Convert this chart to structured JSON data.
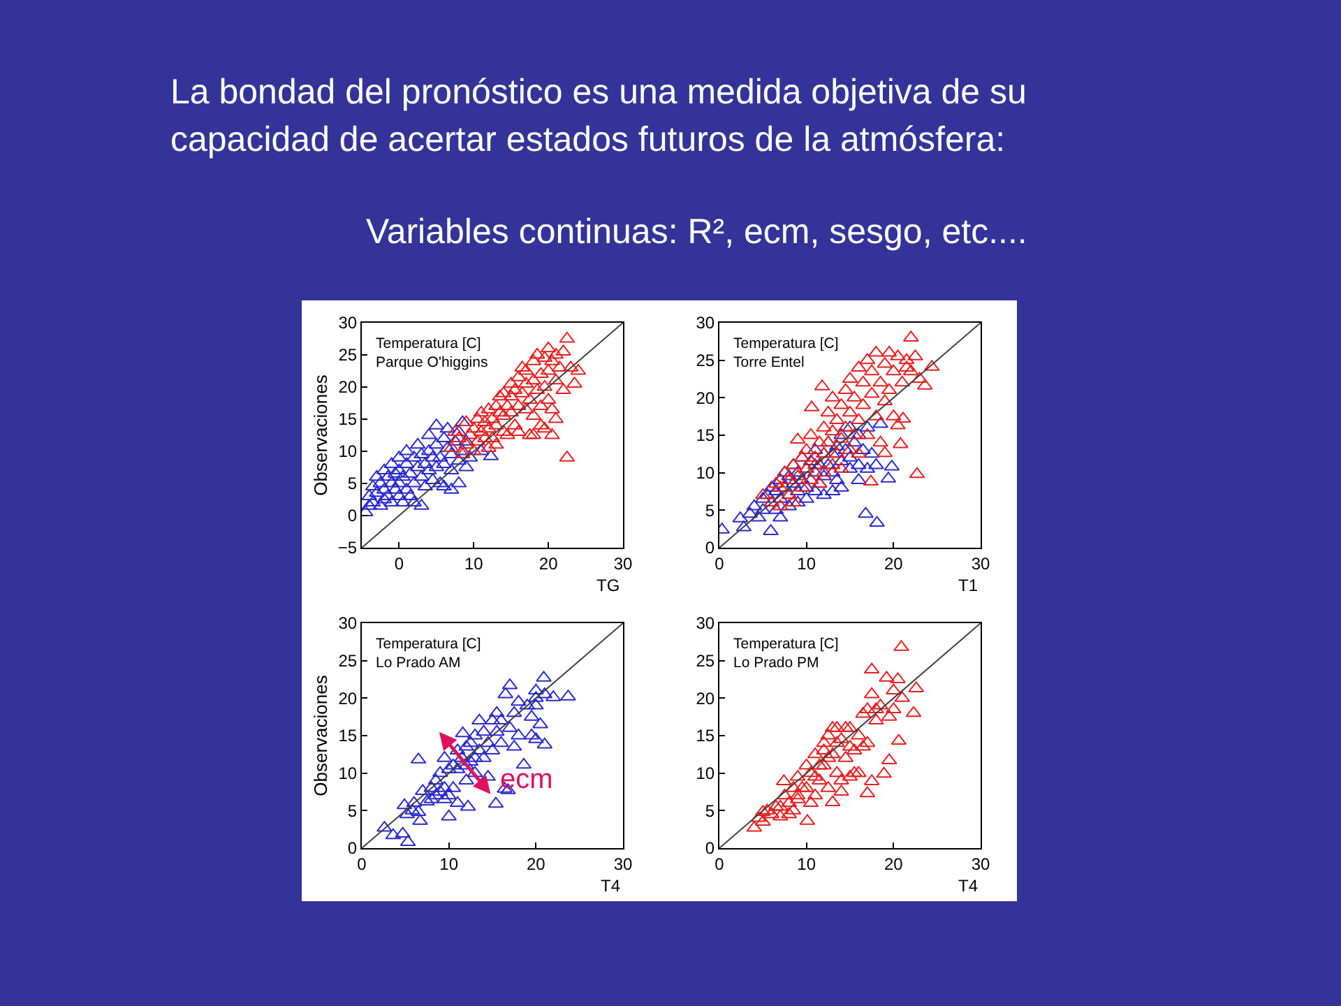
{
  "chart_data": [
    {
      "type": "other",
      "title": "La bondad del pronóstico es una medida objetiva de su capacidad de acertar estados futuros de la atmósfera:",
      "subtitle": "Variables continuas: R², ecm, sesgo, etc...."
    },
    {
      "type": "scatter",
      "marker": "triangle",
      "xlabel": "TG",
      "ylabel": "Observaciones",
      "annotations": [
        "Temperatura [C]\nParque O'higgins"
      ],
      "xlim": [
        -5,
        30
      ],
      "ylim": [
        -5,
        30
      ],
      "xticks": [
        0,
        10,
        20,
        30
      ],
      "yticks": [
        -5,
        0,
        5,
        10,
        15,
        20,
        25,
        30
      ],
      "series": [
        {
          "color": "#2b2bd0",
          "x": [
            -4.5,
            -4,
            -4,
            -3.5,
            -3.5,
            -3,
            -3,
            -2.5,
            -2.5,
            -2,
            -2,
            -2,
            -1.5,
            -1.5,
            -1,
            -1,
            -1,
            -0.5,
            -0.5,
            0,
            0,
            0,
            0,
            0.5,
            0.5,
            1,
            1,
            1,
            1.5,
            1.5,
            2,
            2,
            2,
            2.5,
            2.5,
            3,
            3,
            3,
            3.5,
            3.5,
            4,
            4,
            4,
            4.5,
            4.5,
            5,
            5,
            5,
            5.5,
            5.5,
            6,
            6,
            6,
            6.5,
            6.5,
            7,
            7,
            7,
            7.5,
            8,
            8,
            8,
            8.5,
            9,
            9,
            8.5,
            9.5,
            12.3,
            11
          ],
          "values": [
            0.5,
            1.5,
            3,
            4.5,
            2,
            6,
            3.5,
            5,
            1.5,
            7,
            4,
            2.5,
            6,
            3,
            8,
            5,
            2,
            6.5,
            4,
            9,
            7,
            3,
            5,
            6,
            2,
            8,
            4,
            10,
            6.5,
            3,
            9,
            5,
            2,
            7.5,
            11,
            6,
            9.5,
            1.5,
            8,
            4.5,
            10,
            7,
            12.5,
            5.5,
            9,
            11,
            7.5,
            14,
            9,
            5,
            12,
            8,
            4.5,
            10.5,
            13.5,
            7,
            9.5,
            4,
            11.5,
            8.5,
            5,
            13,
            10,
            7.5,
            11.5,
            14.5,
            9,
            9.2,
            10
          ]
        },
        {
          "color": "#e82020",
          "x": [
            7,
            7.5,
            8,
            8.5,
            9,
            9,
            9.5,
            10,
            10,
            10.5,
            10.5,
            11,
            11,
            11.5,
            11.5,
            12,
            12,
            12,
            12.5,
            12.5,
            13,
            13,
            13,
            13.5,
            13.5,
            14,
            14,
            14,
            14.5,
            14.5,
            15,
            15,
            15,
            15.5,
            15.5,
            16,
            16,
            16,
            16.5,
            16.5,
            17,
            17,
            17,
            17.5,
            17.5,
            18,
            18,
            18,
            18.5,
            18.5,
            19,
            19,
            19,
            19.5,
            19.5,
            20,
            20,
            20,
            20.5,
            20.5,
            20.5,
            21,
            21,
            21,
            21.5,
            22,
            22,
            22.5,
            22.5,
            23,
            23.5,
            24,
            19.5,
            18
          ],
          "values": [
            10.5,
            13,
            12,
            9.5,
            14.5,
            11,
            12.5,
            13.5,
            10,
            15,
            11.5,
            13,
            16,
            12,
            14.5,
            10.5,
            16.5,
            13.5,
            15,
            12,
            17,
            11,
            14,
            16,
            18.5,
            13,
            15.5,
            19,
            17,
            12.5,
            16,
            18.5,
            20.5,
            14,
            19.5,
            17,
            21.5,
            13,
            19,
            23,
            16.5,
            20.5,
            22.5,
            12.5,
            18,
            21,
            24,
            15.5,
            19.5,
            25,
            22,
            17,
            14,
            24.5,
            20,
            26,
            22.5,
            18,
            24,
            16.5,
            12.5,
            25,
            21,
            15,
            23,
            25.5,
            19.5,
            9,
            27.5,
            23,
            20.5,
            22.5,
            13.5,
            12.5
          ]
        },
        {
          "type": "line",
          "marker": "none",
          "color": "#404040",
          "x": [
            -5,
            30
          ],
          "values": [
            -5,
            30
          ]
        }
      ]
    },
    {
      "type": "scatter",
      "marker": "triangle",
      "xlabel": "T1",
      "annotations": [
        "Temperatura [C]\nTorre Entel"
      ],
      "xlim": [
        0,
        30
      ],
      "ylim": [
        0,
        30
      ],
      "xticks": [
        0,
        10,
        20,
        30
      ],
      "yticks": [
        0,
        5,
        10,
        15,
        20,
        25,
        30
      ],
      "series": [
        {
          "color": "#2b2bd0",
          "x": [
            0.3,
            2.4,
            2.8,
            3.5,
            4,
            4.5,
            5,
            5,
            5.5,
            5.9,
            6,
            6,
            6.5,
            6.5,
            7,
            7,
            7,
            7.5,
            7.5,
            8,
            8,
            8,
            8.5,
            8.5,
            9,
            9,
            9,
            9.5,
            9.5,
            10,
            10,
            10,
            10.5,
            10.5,
            11,
            11,
            11,
            11.5,
            11.5,
            12,
            12,
            12,
            12.5,
            12.5,
            13,
            13,
            13,
            13.5,
            13.5,
            14,
            14,
            14,
            14.5,
            15,
            15,
            15,
            15.5,
            16,
            16,
            16,
            16.5,
            16.8,
            17,
            17,
            17.5,
            18.1,
            18,
            18.5,
            19.4,
            19.8
          ],
          "values": [
            2.4,
            3.9,
            2.7,
            4.5,
            5.5,
            4,
            6.5,
            5,
            7,
            2.2,
            6,
            8,
            5,
            7.5,
            9,
            6.5,
            4,
            8,
            10,
            7,
            5.5,
            9.5,
            8.5,
            11,
            7.5,
            10,
            6,
            9,
            12,
            8,
            10.5,
            6.5,
            11.5,
            9,
            13,
            7.5,
            10,
            11,
            8.5,
            12.5,
            9.5,
            7,
            11,
            14,
            10,
            12.5,
            7.5,
            13.5,
            9,
            11.5,
            15,
            8,
            13,
            10.5,
            16,
            12,
            14,
            11,
            9,
            15,
            13,
            4.5,
            16,
            10.5,
            12.5,
            3.3,
            11,
            16.5,
            9.2,
            10.8
          ]
        },
        {
          "color": "#e82020",
          "x": [
            5,
            6,
            6.5,
            7,
            7,
            7.5,
            8,
            8,
            8.5,
            8.5,
            9,
            9,
            9.5,
            9.5,
            10,
            10,
            10.5,
            10.6,
            10.5,
            11,
            11,
            11.5,
            11.5,
            11.8,
            12,
            12,
            12,
            12.5,
            12.5,
            13,
            13,
            13,
            13.5,
            13.5,
            14,
            14,
            14,
            14.5,
            14.5,
            15,
            15,
            15,
            15.5,
            15.5,
            16,
            16,
            16,
            16.5,
            16.5,
            17,
            17,
            17.4,
            17.5,
            17.5,
            18,
            18,
            18.5,
            18.5,
            19,
            19,
            19,
            19.5,
            19.5,
            20,
            20,
            20.5,
            20.5,
            20.8,
            21,
            21.1,
            21.5,
            21.5,
            22,
            22,
            22.7,
            22.5,
            23,
            23.6,
            24.4
          ],
          "values": [
            7,
            6,
            8.5,
            5.5,
            8,
            10,
            7,
            9,
            11,
            6,
            14.4,
            9.5,
            12,
            8,
            10.5,
            13,
            9,
            18.7,
            15,
            12,
            11,
            14,
            8.5,
            21.5,
            16,
            10,
            12.5,
            18,
            14,
            15.5,
            11,
            20,
            17,
            12.5,
            19,
            14.5,
            10.5,
            21,
            16,
            18,
            13,
            22.5,
            15,
            20,
            24,
            17,
            12.5,
            19,
            22,
            25,
            15,
            8.8,
            20.5,
            23.5,
            17.5,
            26,
            22,
            14,
            24.5,
            19.5,
            12.6,
            21,
            26,
            23.5,
            17.5,
            25.5,
            16.3,
            13.8,
            22,
            17.2,
            25,
            24,
            28,
            23.5,
            9.8,
            25.5,
            22.5,
            21.6,
            24.1
          ]
        },
        {
          "type": "line",
          "marker": "none",
          "color": "#404040",
          "x": [
            0,
            30
          ],
          "values": [
            0,
            30
          ]
        }
      ]
    },
    {
      "type": "scatter",
      "marker": "triangle",
      "xlabel": "T4",
      "ylabel": "Observaciones",
      "annotations": [
        "Temperatura [C]\nLo Prado AM",
        "ecm"
      ],
      "xlim": [
        0,
        30
      ],
      "ylim": [
        0,
        30
      ],
      "xticks": [
        0,
        10,
        20,
        30
      ],
      "yticks": [
        0,
        5,
        10,
        15,
        20,
        25,
        30
      ],
      "series": [
        {
          "color": "#2b2bd0",
          "x": [
            2.6,
            3.6,
            4.7,
            5.3,
            4.9,
            5.2,
            5.8,
            6,
            6.7,
            6.5,
            6.5,
            7,
            7.5,
            8,
            8,
            8.5,
            8.5,
            9,
            9,
            9.5,
            9.5,
            9.5,
            10,
            10,
            10,
            10.5,
            10.5,
            11,
            11,
            11,
            11.5,
            11.6,
            12,
            12,
            12,
            12.2,
            12.5,
            12.5,
            13,
            13,
            13,
            13.5,
            13.5,
            14,
            14,
            14.5,
            14.5,
            15,
            15,
            15.4,
            15.5,
            15.5,
            16,
            16,
            16.4,
            16.8,
            17,
            17,
            17.5,
            17.5,
            18,
            18,
            18.6,
            19,
            19.5,
            19.5,
            20,
            20,
            20,
            20.5,
            20.9,
            21,
            21,
            22,
            23.7,
            20,
            16.5
          ],
          "values": [
            2.7,
            1.7,
            1.9,
            0.8,
            5.7,
            4.5,
            5,
            6,
            3.6,
            4.8,
            11.8,
            7.6,
            6.2,
            8,
            6.5,
            7,
            9,
            10,
            7.5,
            12,
            8,
            6.5,
            4.2,
            10.5,
            7,
            11,
            8,
            13,
            10.5,
            6,
            12,
            15.3,
            11,
            9,
            13.5,
            5.5,
            14,
            11.5,
            15,
            12,
            10,
            13,
            17,
            12,
            15.5,
            14,
            9.5,
            17,
            13,
            5.9,
            15.5,
            18,
            17,
            14,
            7.9,
            7.7,
            21.7,
            16,
            18,
            13.5,
            15,
            19.5,
            11.1,
            19,
            15,
            17.5,
            21,
            20,
            14.5,
            16.5,
            22.7,
            20.5,
            13.8,
            20.1,
            20.2,
            19,
            20.5
          ]
        },
        {
          "type": "line",
          "marker": "none",
          "color": "#404040",
          "x": [
            0,
            30
          ],
          "values": [
            0,
            30
          ]
        }
      ]
    },
    {
      "type": "scatter",
      "marker": "triangle",
      "xlabel": "T4",
      "annotations": [
        "Temperatura [C]\nLo Prado PM"
      ],
      "xlim": [
        0,
        30
      ],
      "ylim": [
        0,
        30
      ],
      "xticks": [
        0,
        10,
        20,
        30
      ],
      "yticks": [
        0,
        5,
        10,
        15,
        20,
        25,
        30
      ],
      "series": [
        {
          "color": "#e82020",
          "x": [
            4,
            4.5,
            5,
            5.5,
            5,
            6,
            6.5,
            7,
            7,
            7.4,
            7.5,
            8,
            8,
            8.5,
            8.5,
            9,
            9,
            9,
            9.5,
            10.1,
            10,
            10,
            10.5,
            10.5,
            11,
            11,
            11,
            11.5,
            11.5,
            12,
            12,
            12,
            12.5,
            12.5,
            12.5,
            13,
            13,
            13,
            13.5,
            13.5,
            13.5,
            14,
            14,
            14,
            14.5,
            14.5,
            15,
            15,
            15.5,
            15.5,
            16,
            16,
            16.5,
            16.5,
            17,
            17,
            17.5,
            17.5,
            17.5,
            18,
            18,
            18.5,
            18.9,
            19.2,
            19.5,
            19.5,
            20,
            20,
            20.6,
            20.5,
            20.9,
            21,
            22.3,
            22.6,
            17,
            15
          ],
          "values": [
            2.7,
            4,
            3.5,
            5,
            4.8,
            4.5,
            5.5,
            4.2,
            5.5,
            8.9,
            7,
            6,
            4.5,
            8,
            5,
            6.5,
            9.5,
            7,
            8,
            3.6,
            8,
            11,
            10,
            6,
            7,
            12.5,
            9.5,
            9,
            11,
            14,
            11,
            13,
            8,
            15,
            12,
            6.1,
            12.5,
            16,
            10,
            14,
            16,
            14.5,
            7.5,
            9,
            12,
            16,
            16,
            9.5,
            13,
            10,
            15,
            10,
            17.9,
            13.5,
            14,
            7.3,
            20.5,
            23.8,
            8.9,
            17,
            18.5,
            19,
            9.9,
            22.7,
            17.5,
            11.7,
            21,
            18.5,
            14.3,
            22.5,
            26.8,
            20,
            18,
            21.3,
            18.5,
            13.5
          ]
        },
        {
          "type": "line",
          "marker": "none",
          "color": "#404040",
          "x": [
            0,
            30
          ],
          "values": [
            0,
            30
          ]
        }
      ]
    }
  ]
}
